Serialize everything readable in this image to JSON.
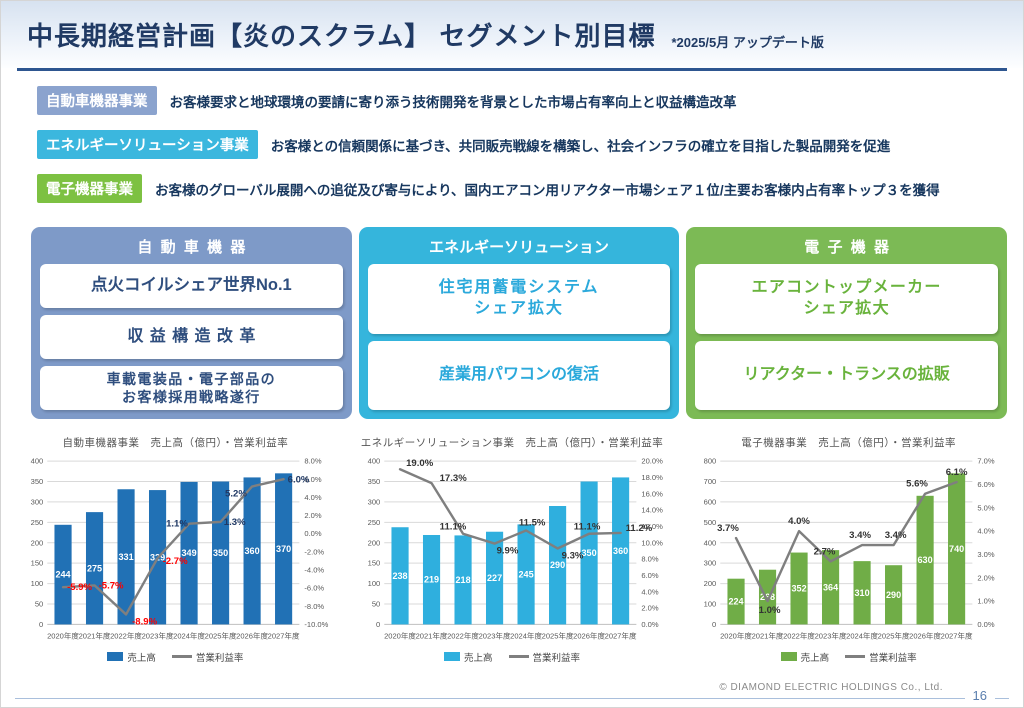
{
  "header": {
    "title": "中長期経営計画【炎のスクラム】 セグメント別目標",
    "subtitle": "*2025/5月 アップデート版"
  },
  "business_rows": [
    {
      "badge": "自動車機器事業",
      "badge_color": "#8BA3CE",
      "description": "お客様要求と地球環境の要請に寄り添う技術開発を背景とした市場占有率向上と収益構造改革"
    },
    {
      "badge": "エネルギーソリューション事業",
      "badge_color": "#3BB7DE",
      "description": "お客様との信頼関係に基づき、共同販売戦線を構築し、社会インフラの確立を目指した製品開発を促進"
    },
    {
      "badge": "電子機器事業",
      "badge_color": "#7DC142",
      "description": "お客様のグローバル展開への追従及び寄与により、国内エアコン用リアクター市場シェア１位/主要お客様内占有率トップ３を獲得"
    }
  ],
  "panels": [
    {
      "title": "自動車機器",
      "color": "#7E9AC8",
      "text_color": "#2F4E7E",
      "items": [
        [
          "点火コイルシェア世界No.1"
        ],
        [
          "収益構造改革"
        ],
        [
          "車載電装品・電子部品の",
          "お客様採用戦略遂行"
        ]
      ]
    },
    {
      "title": "エネルギーソリューション",
      "color": "#35B5DC",
      "text_color": "#2BA9DB",
      "items": [
        [
          "住宅用蓄電システム",
          "シェア拡大"
        ],
        [
          "産業用パワコンの復活"
        ]
      ]
    },
    {
      "title": "電子機器",
      "color": "#7CBA55",
      "text_color": "#69B33C",
      "items": [
        [
          "エアコントップメーカー",
          "シェア拡大"
        ],
        [
          "リアクター・トランスの拡販"
        ]
      ]
    }
  ],
  "chart_data": [
    {
      "type": "bar+line",
      "title": "自動車機器事業　売上高（億円）・営業利益率",
      "categories": [
        "2020年度",
        "2021年度",
        "2022年度",
        "2023年度",
        "2024年度",
        "2025年度",
        "2026年度",
        "2027年度"
      ],
      "series": [
        {
          "name": "売上高",
          "type": "bar",
          "axis": "left",
          "color": "#2171B5",
          "values": [
            244,
            275,
            331,
            329,
            349,
            350,
            360,
            370
          ]
        },
        {
          "name": "営業利益率",
          "type": "line",
          "axis": "right",
          "color": "#7F7F7F",
          "unit": "%",
          "values": [
            -5.9,
            -5.7,
            -8.9,
            -2.7,
            1.1,
            1.3,
            5.2,
            6.0
          ],
          "label_color": "#1F3864",
          "negative_label_color": "#FF0000",
          "label_offsets": [
            [
              4,
              3,
              "start"
            ],
            [
              4,
              3,
              "start"
            ],
            [
              6,
              10,
              "start"
            ],
            [
              5,
              6,
              "start"
            ],
            [
              -12,
              3,
              "middle"
            ],
            [
              14,
              3,
              "middle"
            ],
            [
              -16,
              10,
              "middle"
            ],
            [
              4,
              3,
              "start"
            ]
          ]
        }
      ],
      "left_axis": {
        "min": 0,
        "max": 400,
        "step": 50
      },
      "right_axis": {
        "min": -10,
        "max": 8,
        "step": 2,
        "format": "percent1"
      },
      "grid": true,
      "legend_position": "bottom"
    },
    {
      "type": "bar+line",
      "title": "エネルギーソリューション事業　売上高（億円）・営業利益率",
      "categories": [
        "2020年度",
        "2021年度",
        "2022年度",
        "2023年度",
        "2024年度",
        "2025年度",
        "2026年度",
        "2027年度"
      ],
      "series": [
        {
          "name": "売上高",
          "type": "bar",
          "axis": "left",
          "color": "#2FAFDE",
          "values": [
            238,
            219,
            218,
            227,
            245,
            290,
            350,
            360
          ]
        },
        {
          "name": "営業利益率",
          "type": "line",
          "axis": "right",
          "color": "#7F7F7F",
          "unit": "%",
          "values": [
            19.0,
            17.3,
            11.1,
            9.9,
            11.5,
            9.3,
            11.1,
            11.2
          ],
          "label_color": "#333333",
          "negative_label_color": "#FF0000",
          "label_offsets": [
            [
              6,
              -3,
              "start"
            ],
            [
              8,
              -2,
              "start"
            ],
            [
              -10,
              -4,
              "middle"
            ],
            [
              2,
              10,
              "start"
            ],
            [
              6,
              -5,
              "middle"
            ],
            [
              4,
              10,
              "start"
            ],
            [
              -2,
              -4,
              "middle"
            ],
            [
              5,
              -2,
              "start"
            ]
          ]
        }
      ],
      "left_axis": {
        "min": 0,
        "max": 400,
        "step": 50
      },
      "right_axis": {
        "min": 0,
        "max": 20,
        "step": 2,
        "format": "percent1"
      },
      "grid": true,
      "legend_position": "bottom"
    },
    {
      "type": "bar+line",
      "title": "電子機器事業　売上高（億円）・営業利益率",
      "categories": [
        "2020年度",
        "2021年度",
        "2022年度",
        "2023年度",
        "2024年度",
        "2025年度",
        "2026年度",
        "2027年度"
      ],
      "series": [
        {
          "name": "売上高",
          "type": "bar",
          "axis": "left",
          "color": "#70AD47",
          "values": [
            224,
            268,
            352,
            364,
            310,
            290,
            630,
            740
          ]
        },
        {
          "name": "営業利益率",
          "type": "line",
          "axis": "right",
          "color": "#7F7F7F",
          "unit": "%",
          "values": [
            3.7,
            1.0,
            4.0,
            2.7,
            3.4,
            3.4,
            5.6,
            6.1
          ],
          "label_color": "#333333",
          "negative_label_color": "#FF0000",
          "label_offsets": [
            [
              -8,
              -7,
              "middle"
            ],
            [
              2,
              12,
              "middle"
            ],
            [
              0,
              -7,
              "middle"
            ],
            [
              -6,
              -7,
              "middle"
            ],
            [
              -2,
              -7,
              "middle"
            ],
            [
              2,
              -7,
              "middle"
            ],
            [
              -8,
              -7,
              "middle"
            ],
            [
              0,
              -7,
              "middle"
            ]
          ]
        }
      ],
      "left_axis": {
        "min": 0,
        "max": 800,
        "step": 100
      },
      "right_axis": {
        "min": 0,
        "max": 7,
        "step": 1,
        "format": "percent1"
      },
      "grid": true,
      "legend_position": "bottom"
    }
  ],
  "footer": {
    "copyright": "©  DIAMOND ELECTRIC HOLDINGS Co., Ltd.",
    "page": "16"
  }
}
